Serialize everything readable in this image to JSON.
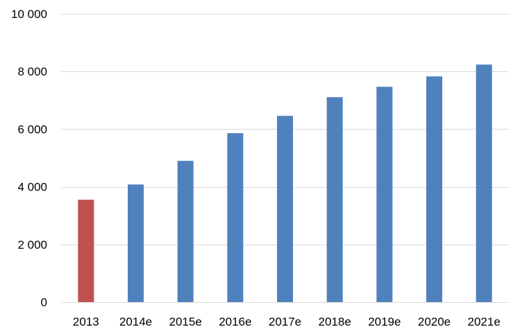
{
  "chart_data": {
    "type": "bar",
    "title": "",
    "xlabel": "",
    "ylabel": "",
    "categories": [
      "2013",
      "2014e",
      "2015e",
      "2016e",
      "2017e",
      "2018e",
      "2019e",
      "2020e",
      "2021e"
    ],
    "values": [
      3550,
      4080,
      4900,
      5860,
      6460,
      7110,
      7470,
      7830,
      8240
    ],
    "bar_colors": [
      "#c0504d",
      "#4f81bd",
      "#4f81bd",
      "#4f81bd",
      "#4f81bd",
      "#4f81bd",
      "#4f81bd",
      "#4f81bd",
      "#4f81bd"
    ],
    "ylim": [
      0,
      10000
    ],
    "yticks": [
      0,
      2000,
      4000,
      6000,
      8000,
      10000
    ],
    "ytick_labels": [
      "0",
      "2 000",
      "4 000",
      "6 000",
      "8 000",
      "10 000"
    ],
    "grid": true,
    "legend": "none"
  }
}
